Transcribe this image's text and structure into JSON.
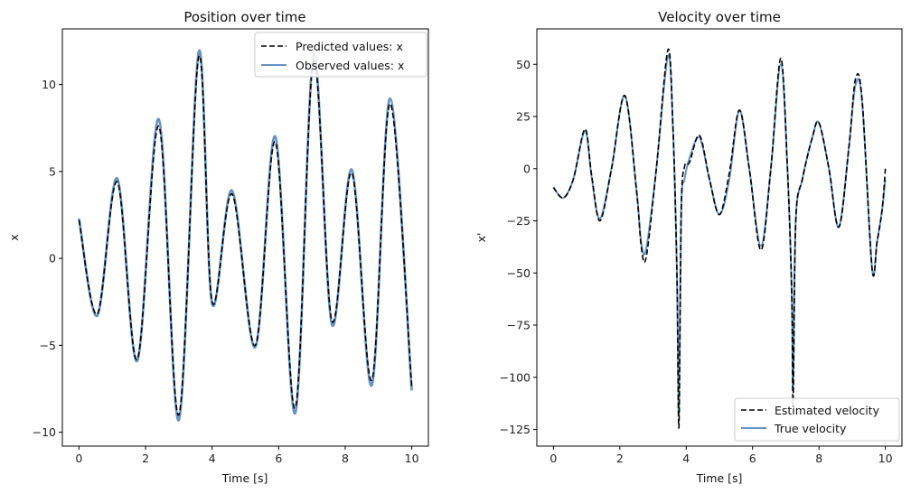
{
  "chart_data": [
    {
      "type": "line",
      "title": "Position over time",
      "xlabel": "Time [s]",
      "ylabel": "x",
      "xlim": [
        -0.5,
        10.5
      ],
      "ylim": [
        -10.8,
        13.2
      ],
      "xticks": [
        0,
        2,
        4,
        6,
        8,
        10
      ],
      "yticks": [
        -10,
        -5,
        0,
        5,
        10
      ],
      "xtick_labels": [
        "0",
        "2",
        "4",
        "6",
        "8",
        "10"
      ],
      "ytick_labels": [
        "−10",
        "−5",
        "0",
        "5",
        "10"
      ],
      "grid": false,
      "legend_position": "top-right",
      "x": [
        0,
        0.55,
        1.15,
        1.75,
        2.4,
        3.0,
        3.6,
        4.0,
        4.6,
        5.3,
        5.9,
        6.5,
        7.05,
        7.6,
        8.2,
        8.8,
        9.35,
        10
      ],
      "series": [
        {
          "name": "Predicted values: x",
          "style": "dashed",
          "color": "#000000",
          "values": [
            2.2,
            -3.2,
            4.4,
            -5.8,
            7.6,
            -9.0,
            11.6,
            -2.5,
            3.7,
            -5.0,
            6.7,
            -8.6,
            11.4,
            -3.6,
            4.9,
            -7.0,
            8.9,
            -7.4
          ]
        },
        {
          "name": "Observed values: x",
          "style": "solid",
          "color": "#4a7fb8",
          "values": [
            2.3,
            -3.3,
            4.6,
            -5.9,
            8.0,
            -9.3,
            11.9,
            -2.6,
            3.9,
            -5.1,
            7.0,
            -8.9,
            11.7,
            -3.8,
            5.1,
            -7.3,
            9.2,
            -7.6
          ]
        }
      ]
    },
    {
      "type": "line",
      "title": "Velocity over time",
      "xlabel": "Time [s]",
      "ylabel": "x'",
      "xlim": [
        -0.5,
        10.5
      ],
      "ylim": [
        -133,
        67
      ],
      "xticks": [
        0,
        2,
        4,
        6,
        8,
        10
      ],
      "yticks": [
        -125,
        -100,
        -75,
        -50,
        -25,
        0,
        25,
        50
      ],
      "xtick_labels": [
        "0",
        "2",
        "4",
        "6",
        "8",
        "10"
      ],
      "ytick_labels": [
        "−125",
        "−100",
        "−75",
        "−50",
        "−25",
        "0",
        "25",
        "50"
      ],
      "grid": false,
      "legend_position": "bottom-right",
      "x": [
        0,
        0.3,
        0.6,
        0.95,
        1.15,
        1.4,
        1.75,
        2.15,
        2.5,
        2.65,
        2.8,
        3.1,
        3.45,
        3.6,
        3.72,
        3.78,
        3.85,
        3.95,
        4.1,
        4.4,
        4.7,
        5.0,
        5.3,
        5.6,
        5.9,
        6.25,
        6.55,
        6.85,
        7.05,
        7.18,
        7.22,
        7.3,
        7.5,
        7.8,
        8.0,
        8.3,
        8.6,
        8.9,
        9.1,
        9.3,
        9.6,
        9.75,
        9.9,
        10
      ],
      "series": [
        {
          "name": "Estimated velocity",
          "style": "dashed",
          "color": "#000000",
          "values": [
            -9,
            -14,
            -5,
            19,
            -3,
            -25,
            0,
            35,
            -10,
            -38,
            -42,
            0,
            57,
            20,
            -50,
            -124,
            -20,
            1,
            3,
            16,
            -5,
            -22,
            -2,
            28,
            0,
            -39,
            0,
            53,
            0,
            -60,
            -113,
            -25,
            -5,
            15,
            22,
            0,
            -28,
            10,
            43,
            33,
            -48,
            -35,
            -20,
            0
          ]
        },
        {
          "name": "True velocity",
          "style": "solid",
          "color": "#4a7fb8",
          "values": [
            -9,
            -14,
            -5,
            18,
            -4,
            -24,
            0,
            35,
            -10,
            -36,
            -38,
            0,
            54,
            20,
            -50,
            -118,
            -20,
            -5,
            5,
            15,
            -5,
            -22,
            -5,
            28,
            0,
            -37,
            0,
            50,
            0,
            -60,
            -105,
            -25,
            -5,
            15,
            22,
            0,
            -28,
            10,
            40,
            32,
            -48,
            -35,
            -20,
            -5
          ]
        }
      ]
    }
  ]
}
